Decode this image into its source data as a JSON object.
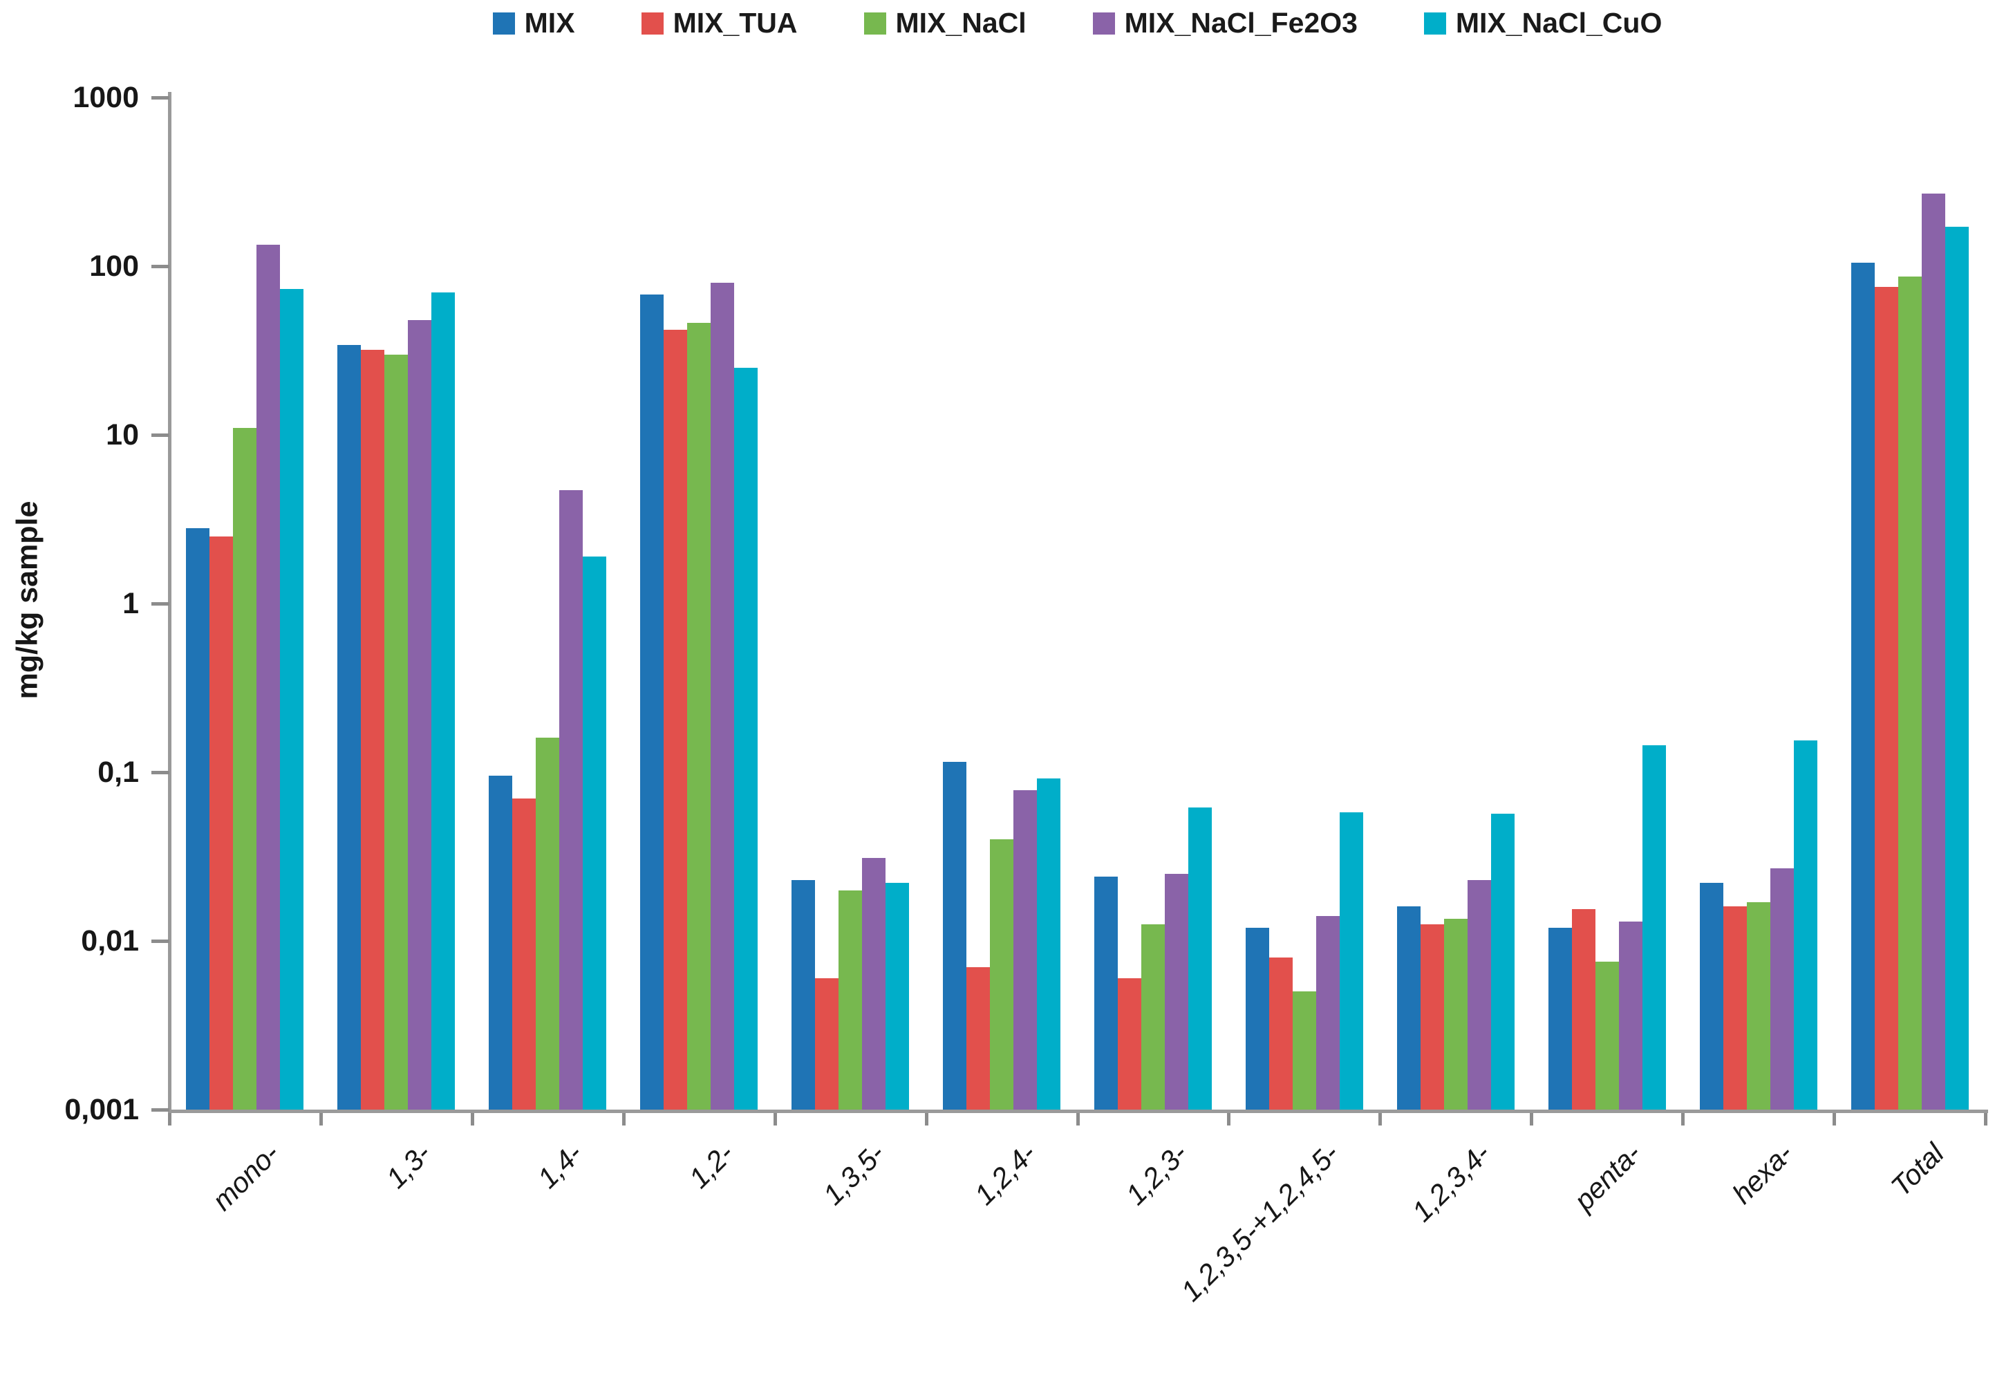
{
  "chart_data": {
    "type": "bar",
    "title": "",
    "xlabel": "",
    "ylabel": "mg/kg sample",
    "yscale": "log",
    "ylim": [
      0.001,
      1000
    ],
    "grid": false,
    "legend_position": "top-center",
    "yticks": {
      "labels": [
        "1000",
        "100",
        "10",
        "1",
        "0,1",
        "0,01",
        "0,001"
      ],
      "values": [
        1000,
        100,
        10,
        1,
        0.1,
        0.01,
        0.001
      ]
    },
    "categories": [
      "mono-",
      "1,3-",
      "1,4-",
      "1,2-",
      "1,3,5-",
      "1,2,4-",
      "1,2,3-",
      "1,2,3,5-+1,2,4,5-",
      "1,2,3,4-",
      "penta-",
      "hexa-",
      "Total"
    ],
    "series": [
      {
        "name": "MIX",
        "color": "#1F74B5",
        "values": [
          2.8,
          34,
          0.095,
          68,
          0.023,
          0.115,
          0.024,
          0.012,
          0.016,
          0.012,
          0.022,
          105
        ]
      },
      {
        "name": "MIX_TUA",
        "color": "#E2504C",
        "values": [
          2.5,
          32,
          0.07,
          42,
          0.006,
          0.007,
          0.006,
          0.008,
          0.0125,
          0.0155,
          0.016,
          75
        ]
      },
      {
        "name": "MIX_NaCl",
        "color": "#77B84F",
        "values": [
          11,
          30,
          0.16,
          46,
          0.02,
          0.04,
          0.0125,
          0.005,
          0.0135,
          0.0075,
          0.017,
          87
        ]
      },
      {
        "name": "MIX_NaCl_Fe2O3",
        "color": "#8A63A8",
        "values": [
          134,
          48,
          4.7,
          80,
          0.031,
          0.078,
          0.025,
          0.014,
          0.023,
          0.013,
          0.027,
          270
        ]
      },
      {
        "name": "MIX_NaCl_CuO",
        "color": "#00AEC9",
        "values": [
          73,
          70,
          1.9,
          25,
          0.022,
          0.092,
          0.062,
          0.058,
          0.057,
          0.145,
          0.155,
          172
        ]
      }
    ]
  }
}
